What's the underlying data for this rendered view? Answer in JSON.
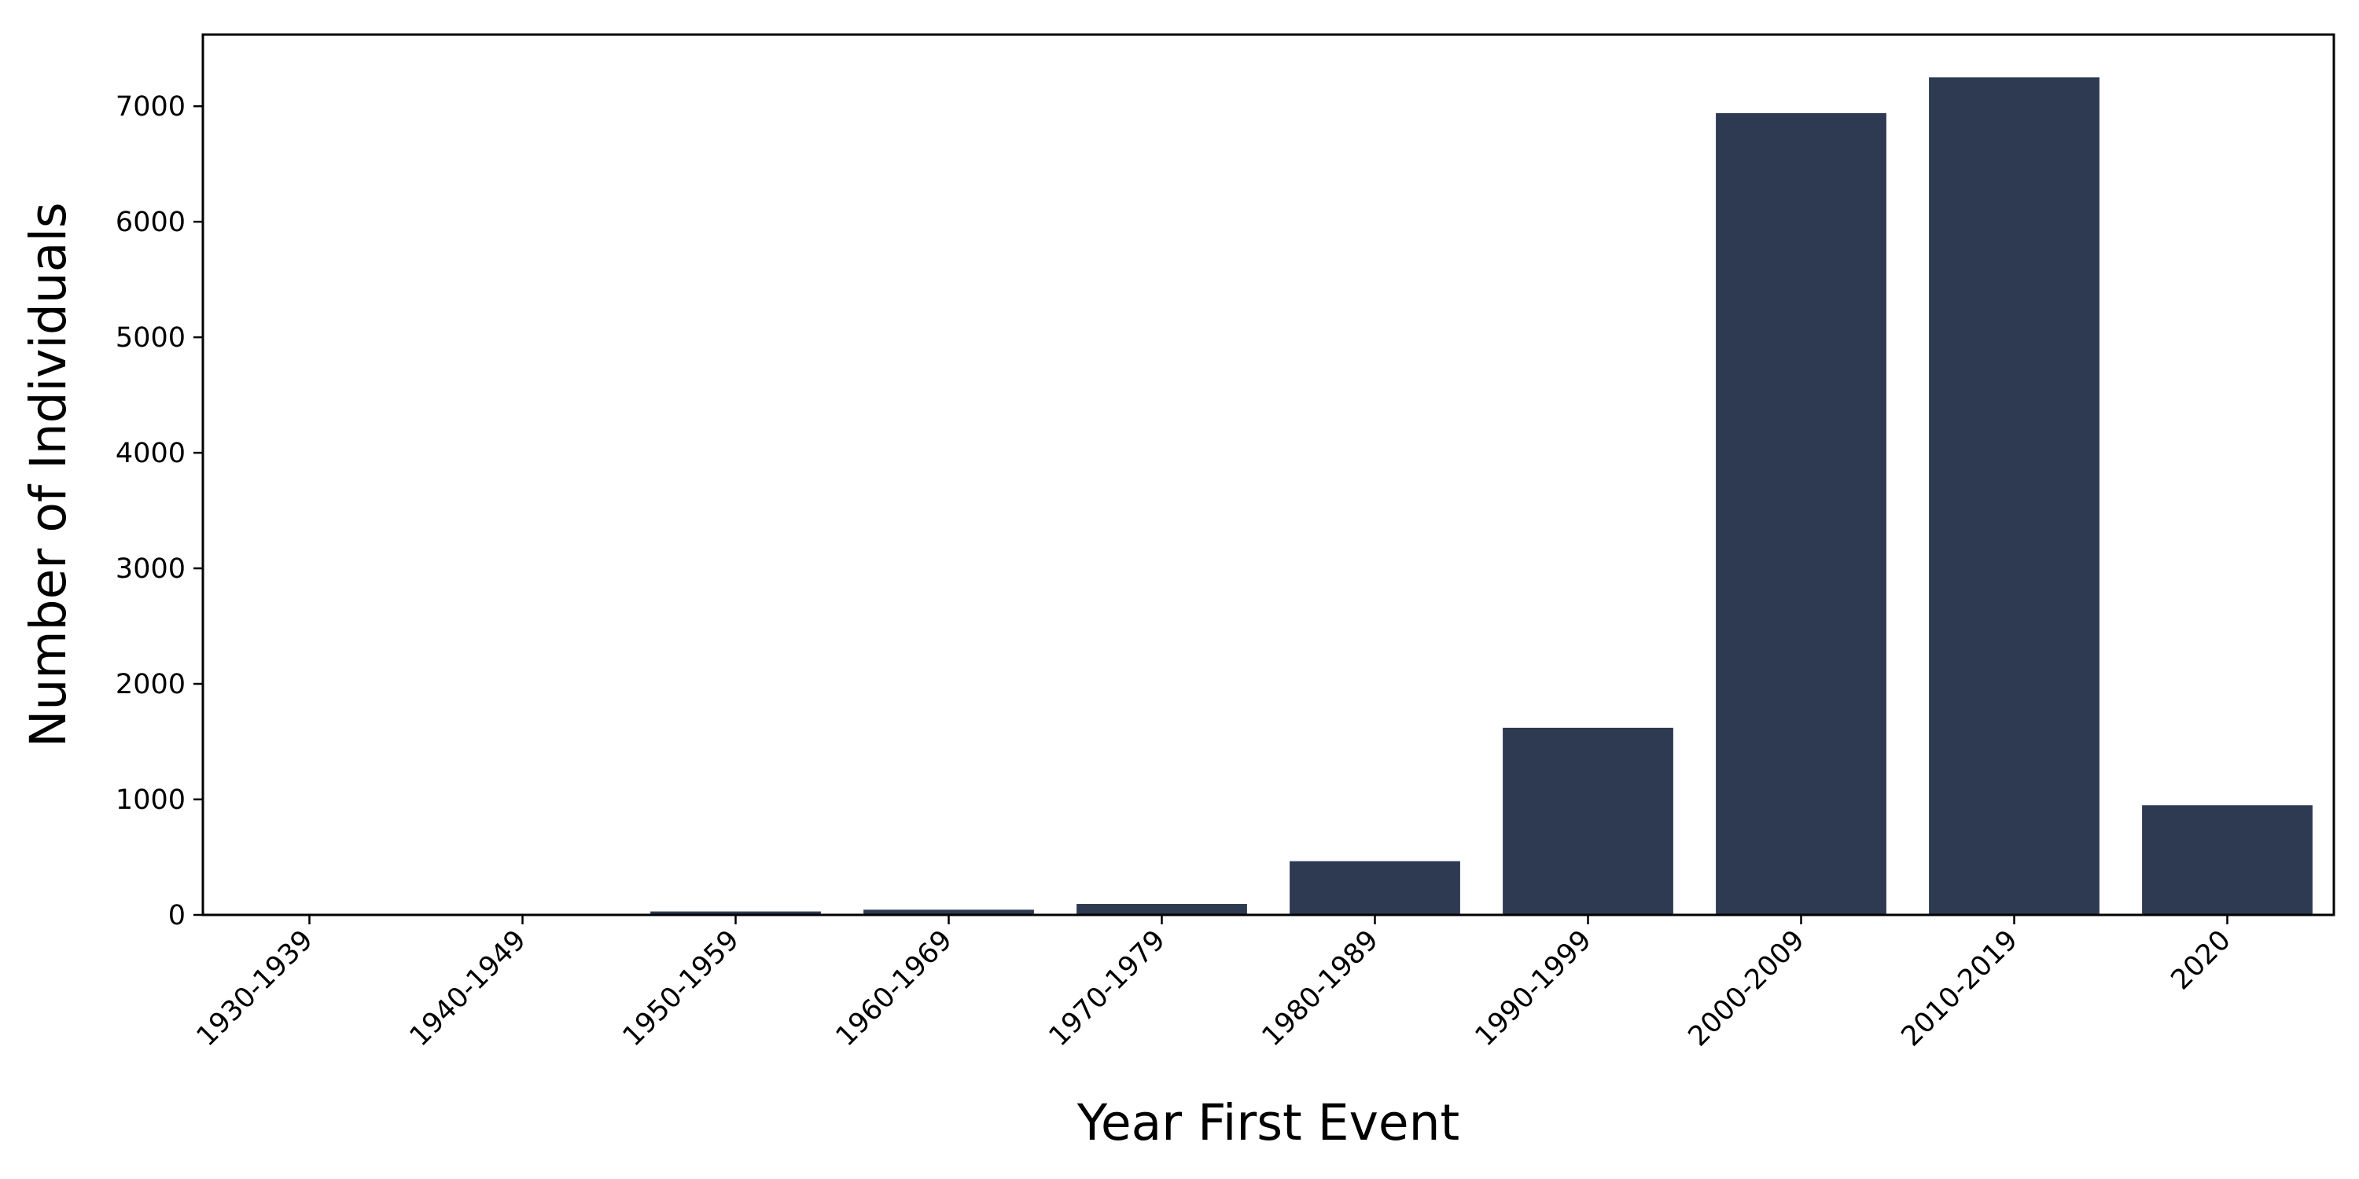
{
  "chart_data": {
    "type": "bar",
    "categories": [
      "1930-1939",
      "1940-1949",
      "1950-1959",
      "1960-1969",
      "1970-1979",
      "1980-1989",
      "1990-1999",
      "2000-2009",
      "2010-2019",
      "2020"
    ],
    "values": [
      2,
      5,
      30,
      45,
      95,
      465,
      1620,
      6940,
      7250,
      950
    ],
    "title": "",
    "xlabel": "Year First Event",
    "ylabel": "Number of Individuals",
    "ylim": [
      0,
      7620
    ],
    "yticks": [
      0,
      1000,
      2000,
      3000,
      4000,
      5000,
      6000,
      7000
    ],
    "grid": false,
    "legend": "none",
    "bar_color": "#2d3a52"
  }
}
